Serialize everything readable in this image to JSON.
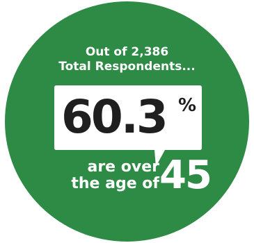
{
  "colors": {
    "circle_green": "#2e8b45",
    "bubble_white": "#ffffff",
    "big_text": "#1f1f1f"
  },
  "intro": {
    "line1": "Out of 2,386",
    "line2": "Total Respondents..."
  },
  "stat": {
    "value": "60.3",
    "unit": "%"
  },
  "caption": {
    "line1": "are over",
    "line2": "the age of",
    "age": "45"
  }
}
